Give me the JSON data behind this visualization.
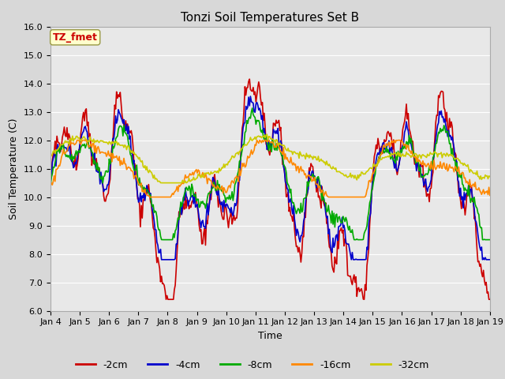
{
  "title": "Tonzi Soil Temperatures Set B",
  "xlabel": "Time",
  "ylabel": "Soil Temperature (C)",
  "ylim": [
    6.0,
    16.0
  ],
  "yticks": [
    6.0,
    7.0,
    8.0,
    9.0,
    10.0,
    11.0,
    12.0,
    13.0,
    14.0,
    15.0,
    16.0
  ],
  "fig_bg_color": "#d8d8d8",
  "plot_bg_color": "#e8e8e8",
  "annotation_text": "TZ_fmet",
  "annotation_color": "#cc0000",
  "annotation_bg": "#ffffcc",
  "series_colors": [
    "#cc0000",
    "#0000cc",
    "#00aa00",
    "#ff8800",
    "#cccc00"
  ],
  "series_labels": [
    "-2cm",
    "-4cm",
    "-8cm",
    "-16cm",
    "-32cm"
  ],
  "x_labels": [
    "Jan 4",
    "Jan 5",
    "Jan 6",
    "Jan 7",
    "Jan 8",
    "Jan 9",
    "Jan 10",
    "Jan 11",
    "Jan 12",
    "Jan 13",
    "Jan 14",
    "Jan 15",
    "Jan 16",
    "Jan 17",
    "Jan 18",
    "Jan 19"
  ],
  "title_fontsize": 11,
  "axis_label_fontsize": 9,
  "legend_fontsize": 9,
  "tick_fontsize": 8,
  "line_width": 1.2
}
